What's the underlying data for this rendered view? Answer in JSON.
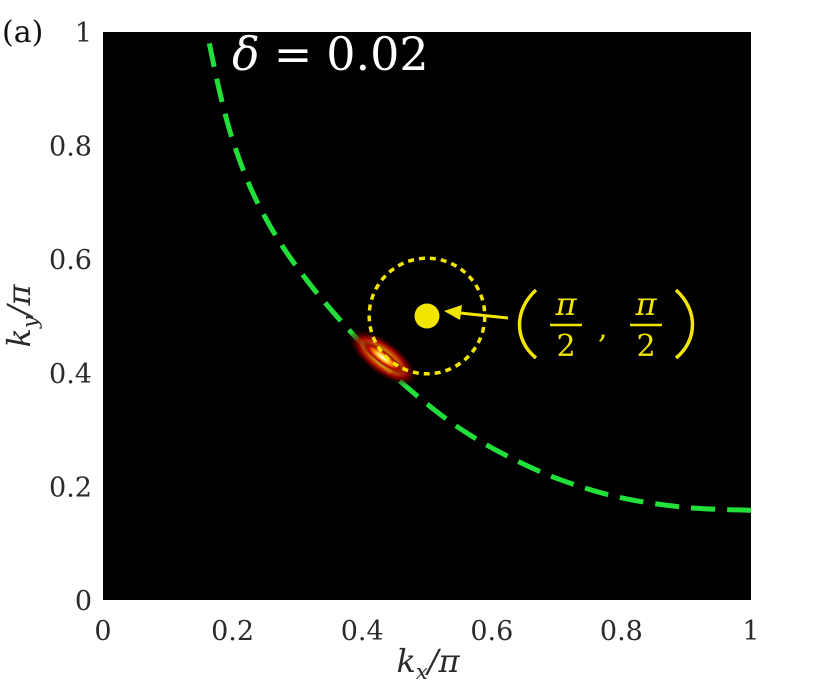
{
  "panel_label": "(a)",
  "colors": {
    "background": "#000000",
    "curve": "#22e03a",
    "marker": "#f2e600",
    "hot": "#ffffff"
  },
  "annotation": {
    "symbol": "δ",
    "equals": "=",
    "value": "0.02"
  },
  "point_label": {
    "numerator": "π",
    "denominator": "2",
    "separator": ","
  },
  "chart_data": {
    "type": "heatmap",
    "title": "",
    "colormap": "hot",
    "xlabel": {
      "base": "k",
      "sub": "x",
      "tail": "/π"
    },
    "ylabel": {
      "base": "k",
      "sub": "y",
      "tail": "/π"
    },
    "xlim": [
      0,
      1
    ],
    "ylim": [
      0,
      1
    ],
    "xticks": [
      "0",
      "0.2",
      "0.4",
      "0.6",
      "0.8",
      "1"
    ],
    "yticks": [
      "0",
      "0.2",
      "0.4",
      "0.6",
      "0.8",
      "1"
    ],
    "grid": false,
    "fermi_surface": {
      "style": "dashed",
      "points": [
        [
          0.164,
          0.98
        ],
        [
          0.18,
          0.895
        ],
        [
          0.2,
          0.81
        ],
        [
          0.23,
          0.72
        ],
        [
          0.27,
          0.635
        ],
        [
          0.32,
          0.555
        ],
        [
          0.38,
          0.475
        ],
        [
          0.44,
          0.405
        ],
        [
          0.5,
          0.345
        ],
        [
          0.56,
          0.295
        ],
        [
          0.63,
          0.25
        ],
        [
          0.71,
          0.21
        ],
        [
          0.8,
          0.18
        ],
        [
          0.9,
          0.163
        ],
        [
          1.0,
          0.158
        ]
      ]
    },
    "hotspot": {
      "center": [
        0.432,
        0.427
      ],
      "direction": [
        0.76,
        -0.65
      ],
      "half_length": 0.05,
      "width": 0.012
    },
    "circle": {
      "center": [
        0.5,
        0.5
      ],
      "radius": 0.095,
      "style": "dotted"
    },
    "marker": {
      "point": [
        0.5,
        0.5
      ]
    }
  }
}
